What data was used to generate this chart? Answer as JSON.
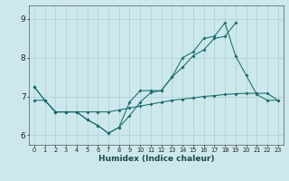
{
  "xlabel": "Humidex (Indice chaleur)",
  "bg_color": "#cce8ec",
  "line_color": "#1a6b6b",
  "grid_color": "#aacfd4",
  "xlim": [
    -0.5,
    23.5
  ],
  "ylim": [
    5.75,
    9.35
  ],
  "line1_x": [
    0,
    1,
    2,
    3,
    4,
    5,
    6,
    7,
    8,
    9,
    10,
    11,
    12,
    13,
    14,
    15,
    16,
    17,
    18,
    19,
    20,
    21,
    22,
    23
  ],
  "line1_y": [
    7.25,
    6.9,
    6.6,
    6.6,
    6.6,
    6.4,
    6.25,
    6.05,
    6.2,
    6.85,
    7.15,
    7.15,
    7.15,
    7.5,
    8.0,
    8.15,
    8.5,
    8.55,
    8.9,
    8.05,
    7.55,
    7.05,
    6.9,
    6.9
  ],
  "line2_x": [
    0,
    1,
    2,
    3,
    4,
    5,
    6,
    7,
    8,
    9,
    10,
    11,
    12,
    13,
    14,
    15,
    16,
    17,
    18,
    19
  ],
  "line2_y": [
    7.25,
    6.9,
    6.6,
    6.6,
    6.6,
    6.4,
    6.25,
    6.05,
    6.2,
    6.5,
    6.85,
    7.1,
    7.15,
    7.5,
    7.75,
    8.05,
    8.2,
    8.5,
    8.55,
    8.9
  ],
  "line3_x": [
    0,
    1,
    2,
    3,
    4,
    5,
    6,
    7,
    8,
    9,
    10,
    11,
    12,
    13,
    14,
    15,
    16,
    17,
    18,
    19,
    20,
    21,
    22,
    23
  ],
  "line3_y": [
    6.9,
    6.9,
    6.6,
    6.6,
    6.6,
    6.6,
    6.6,
    6.6,
    6.65,
    6.7,
    6.75,
    6.8,
    6.85,
    6.9,
    6.93,
    6.96,
    7.0,
    7.02,
    7.05,
    7.07,
    7.08,
    7.08,
    7.08,
    6.9
  ]
}
